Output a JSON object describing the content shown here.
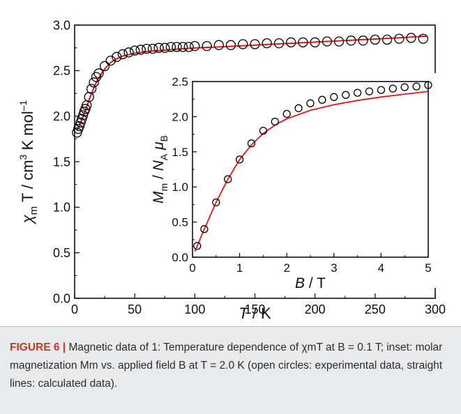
{
  "chart_data": [
    {
      "type": "scatter",
      "name": "main",
      "xlabel_var": "T",
      "xlabel_unit": " / K",
      "ylabel_var": "χ",
      "ylabel_sub": "m",
      "ylabel_rest": " T / cm",
      "ylabel_sup1": "3",
      "ylabel_rest2": " K mol",
      "ylabel_sup2": "–1",
      "xlim": [
        0,
        300
      ],
      "ylim": [
        0.0,
        3.0
      ],
      "xticks": [
        "0",
        "50",
        "100",
        "150",
        "200",
        "250",
        "300"
      ],
      "yticks": [
        "0.0",
        "0.5",
        "1.0",
        "1.5",
        "2.0",
        "2.5",
        "3.0"
      ],
      "series": [
        {
          "style": "open-circles",
          "color": "#000000",
          "points": [
            [
              2,
              1.82
            ],
            [
              3,
              1.86
            ],
            [
              4,
              1.89
            ],
            [
              5,
              1.93
            ],
            [
              6,
              1.97
            ],
            [
              7,
              2.01
            ],
            [
              8,
              2.05
            ],
            [
              9,
              2.08
            ],
            [
              10,
              2.12
            ],
            [
              12,
              2.21
            ],
            [
              14,
              2.3
            ],
            [
              16,
              2.37
            ],
            [
              18,
              2.43
            ],
            [
              20,
              2.47
            ],
            [
              25,
              2.55
            ],
            [
              30,
              2.61
            ],
            [
              35,
              2.65
            ],
            [
              40,
              2.68
            ],
            [
              45,
              2.7
            ],
            [
              50,
              2.72
            ],
            [
              55,
              2.73
            ],
            [
              60,
              2.74
            ],
            [
              65,
              2.74
            ],
            [
              70,
              2.75
            ],
            [
              75,
              2.75
            ],
            [
              80,
              2.76
            ],
            [
              85,
              2.76
            ],
            [
              90,
              2.76
            ],
            [
              95,
              2.76
            ],
            [
              100,
              2.77
            ],
            [
              110,
              2.77
            ],
            [
              120,
              2.78
            ],
            [
              130,
              2.78
            ],
            [
              140,
              2.79
            ],
            [
              150,
              2.79
            ],
            [
              160,
              2.8
            ],
            [
              170,
              2.8
            ],
            [
              180,
              2.81
            ],
            [
              190,
              2.81
            ],
            [
              200,
              2.81
            ],
            [
              210,
              2.82
            ],
            [
              220,
              2.82
            ],
            [
              230,
              2.83
            ],
            [
              240,
              2.83
            ],
            [
              250,
              2.84
            ],
            [
              260,
              2.84
            ],
            [
              270,
              2.85
            ],
            [
              280,
              2.86
            ],
            [
              290,
              2.85
            ]
          ]
        },
        {
          "style": "line",
          "color": "#e8141c",
          "points": [
            [
              2,
              1.84
            ],
            [
              4,
              1.9
            ],
            [
              6,
              1.96
            ],
            [
              8,
              2.03
            ],
            [
              10,
              2.1
            ],
            [
              12,
              2.18
            ],
            [
              15,
              2.28
            ],
            [
              18,
              2.37
            ],
            [
              21,
              2.44
            ],
            [
              25,
              2.52
            ],
            [
              30,
              2.59
            ],
            [
              35,
              2.63
            ],
            [
              40,
              2.66
            ],
            [
              50,
              2.69
            ],
            [
              60,
              2.71
            ],
            [
              70,
              2.72
            ],
            [
              80,
              2.73
            ],
            [
              100,
              2.75
            ],
            [
              120,
              2.76
            ],
            [
              150,
              2.78
            ],
            [
              180,
              2.8
            ],
            [
              210,
              2.82
            ],
            [
              240,
              2.84
            ],
            [
              270,
              2.86
            ],
            [
              293,
              2.88
            ]
          ]
        }
      ]
    },
    {
      "type": "scatter",
      "name": "inset",
      "xlabel_var": "B",
      "xlabel_unit": " / T",
      "ylabel_var1": "M",
      "ylabel_sub1": "m",
      "ylabel_mid": " / ",
      "ylabel_var2": "N",
      "ylabel_sub2": "A",
      "ylabel_space": " ",
      "ylabel_var3": "μ",
      "ylabel_sub3": "B",
      "xlim": [
        0,
        5
      ],
      "ylim": [
        0.0,
        2.5
      ],
      "xticks": [
        "0",
        "1",
        "2",
        "3",
        "4",
        "5"
      ],
      "yticks": [
        "0.0",
        "0.5",
        "1.0",
        "1.5",
        "2.0",
        "2.5"
      ],
      "series": [
        {
          "style": "open-circles",
          "color": "#000000",
          "points": [
            [
              0.1,
              0.16
            ],
            [
              0.25,
              0.4
            ],
            [
              0.5,
              0.78
            ],
            [
              0.75,
              1.11
            ],
            [
              1.0,
              1.39
            ],
            [
              1.25,
              1.62
            ],
            [
              1.5,
              1.8
            ],
            [
              1.75,
              1.93
            ],
            [
              2.0,
              2.04
            ],
            [
              2.25,
              2.12
            ],
            [
              2.5,
              2.19
            ],
            [
              2.75,
              2.24
            ],
            [
              3.0,
              2.28
            ],
            [
              3.25,
              2.31
            ],
            [
              3.5,
              2.34
            ],
            [
              3.75,
              2.36
            ],
            [
              4.0,
              2.38
            ],
            [
              4.25,
              2.4
            ],
            [
              4.5,
              2.42
            ],
            [
              4.75,
              2.43
            ],
            [
              5.0,
              2.45
            ]
          ]
        },
        {
          "style": "line",
          "color": "#e8141c",
          "points": [
            [
              0.05,
              0.08
            ],
            [
              0.25,
              0.4
            ],
            [
              0.5,
              0.78
            ],
            [
              0.75,
              1.11
            ],
            [
              1.0,
              1.39
            ],
            [
              1.25,
              1.6
            ],
            [
              1.5,
              1.76
            ],
            [
              1.75,
              1.88
            ],
            [
              2.0,
              1.97
            ],
            [
              2.5,
              2.09
            ],
            [
              3.0,
              2.17
            ],
            [
              3.5,
              2.23
            ],
            [
              4.0,
              2.28
            ],
            [
              4.5,
              2.32
            ],
            [
              5.0,
              2.36
            ]
          ]
        }
      ]
    }
  ],
  "caption": {
    "lead": "FIGURE 6 |",
    "text": " Magnetic data of 1: Temperature dependence of χmT at B = 0.1 T; inset: molar magnetization Mm vs. applied field B at T = 2.0 K (open circles: experimental data, straight lines: calculated data)."
  }
}
